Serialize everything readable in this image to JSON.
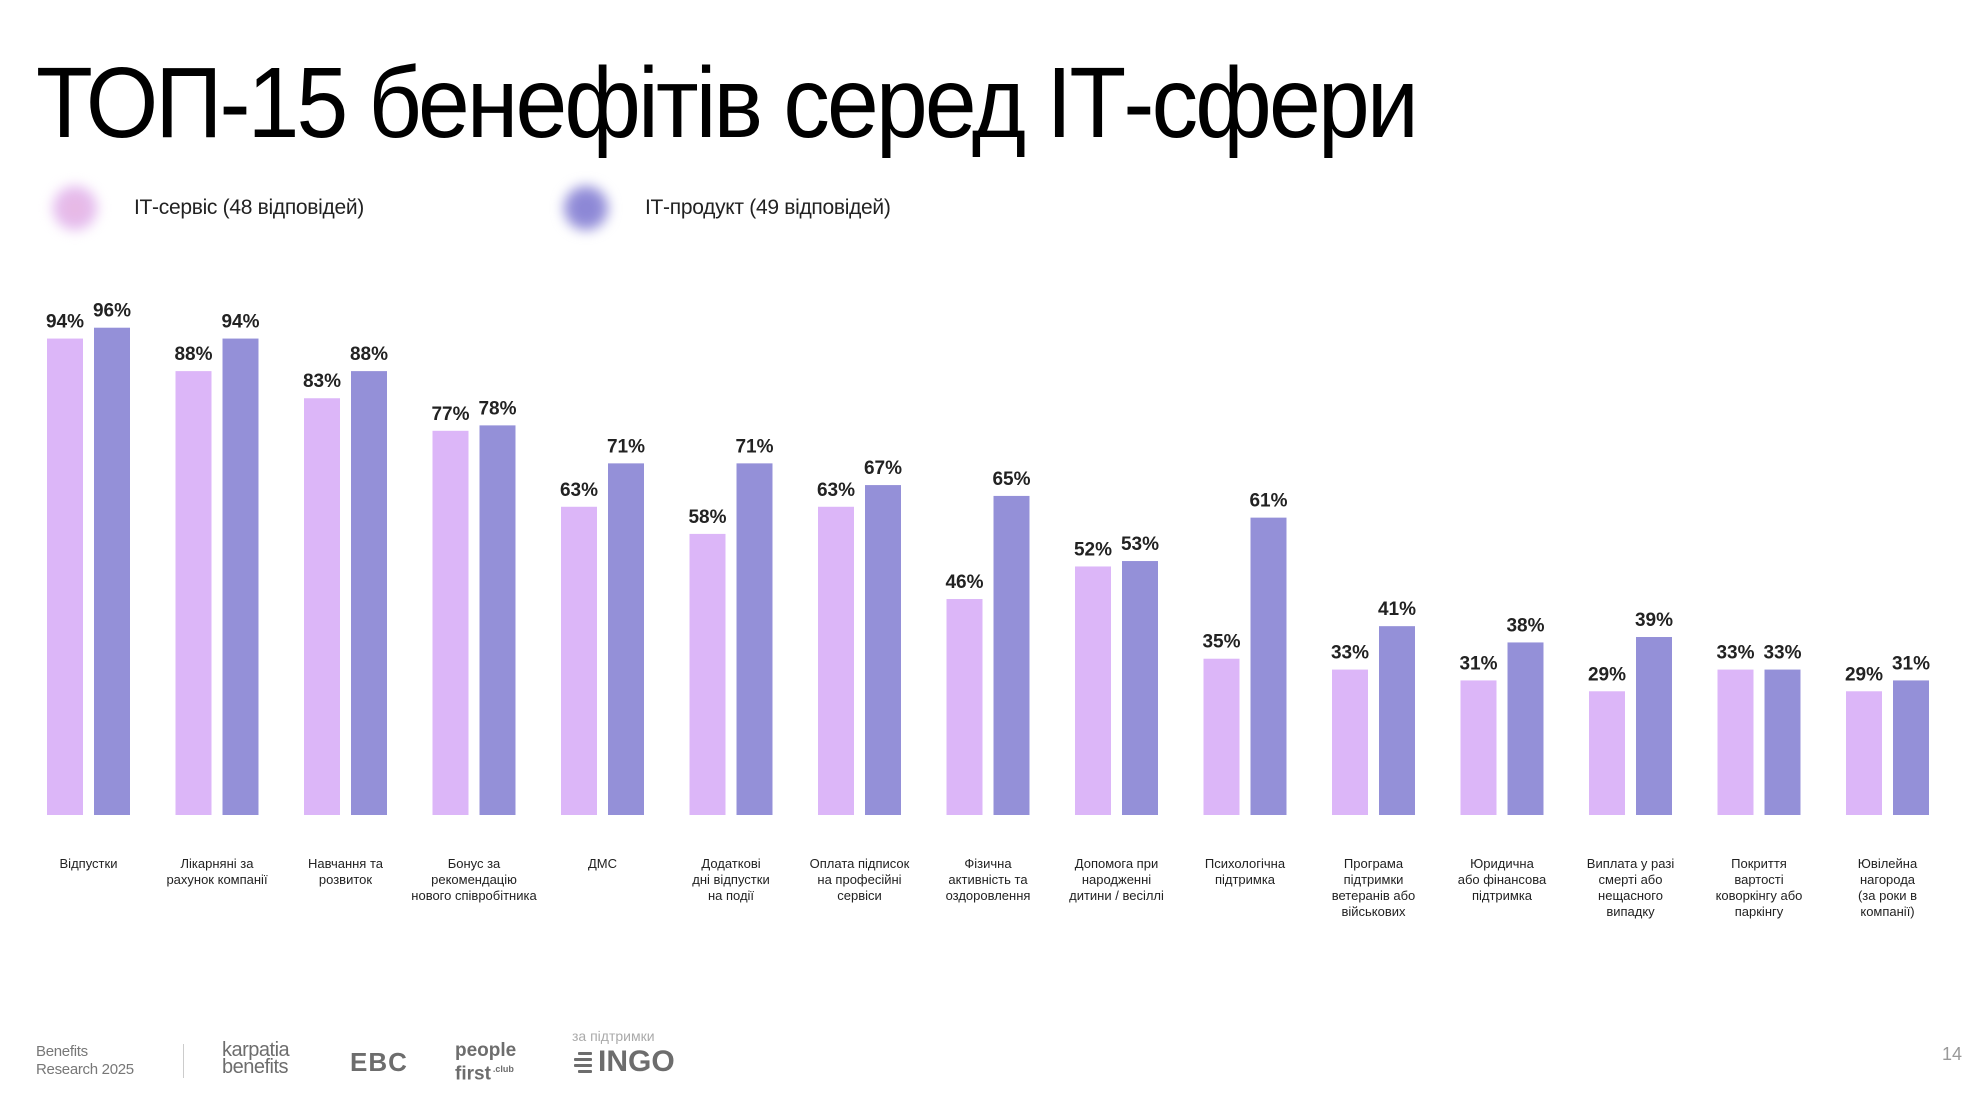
{
  "title": "ТОП-15 бенефітів серед ІТ-сфери",
  "legend": [
    {
      "label": "ІТ-сервіс (48 відповідей)",
      "color": "#E9B9E6",
      "color2": "#DCB6F8"
    },
    {
      "label": "ІТ-продукт (49 відповідей)",
      "color": "#8E89D6",
      "color2": "#9490D8"
    }
  ],
  "chart_data": {
    "type": "bar",
    "title": "ТОП-15 бенефітів серед ІТ-сфери",
    "xlabel": "",
    "ylabel": "",
    "ylim": [
      6.2,
      100
    ],
    "grid": false,
    "legend_position": "top-left",
    "value_suffix": "%",
    "categories": [
      "Відпустки",
      "Лікарняні за\nрахунок компанії",
      "Навчання та\nрозвиток",
      "Бонус за\nрекомендацію\nнового співробітника",
      "ДМС",
      "Додаткові\nдні відпустки\nна події",
      "Оплата підписок\nна професійні\nсервіси",
      "Фізична\nактивність та\nоздоровлення",
      "Допомога при\nнародженні\nдитини / весіллі",
      "Психологічна\nпідтримка",
      "Програма\nпідтримки\nветеранів або\nвійськових",
      "Юридична\nабо фінансова\nпідтримка",
      "Виплата у разі\nсмерті або\nнещасного\nвипадку",
      "Покриття\nвартості\nковоркінгу або\nпаркінгу",
      "Ювілейна\nнагорода\n(за роки в\nкомпанії)"
    ],
    "series": [
      {
        "name": "ІТ-сервіс (48 відповідей)",
        "color": "#DCB6F8",
        "values": [
          94,
          88,
          83,
          77,
          63,
          58,
          63,
          46,
          52,
          35,
          33,
          31,
          29,
          33,
          29
        ]
      },
      {
        "name": "ІТ-продукт (49 відповідей)",
        "color": "#9490D8",
        "values": [
          96,
          94,
          88,
          78,
          71,
          71,
          67,
          65,
          53,
          61,
          41,
          38,
          39,
          33,
          31
        ]
      }
    ]
  },
  "footer": {
    "report": "Benefits\nResearch 2025",
    "logos": {
      "karpatia": "karpatia\nbenefits",
      "ebc": "EBC",
      "people_first": "people\nfirst",
      "people_first_suffix": ".club",
      "support_label": "за підтримки",
      "ingo": "INGO"
    },
    "page_number": "14"
  }
}
